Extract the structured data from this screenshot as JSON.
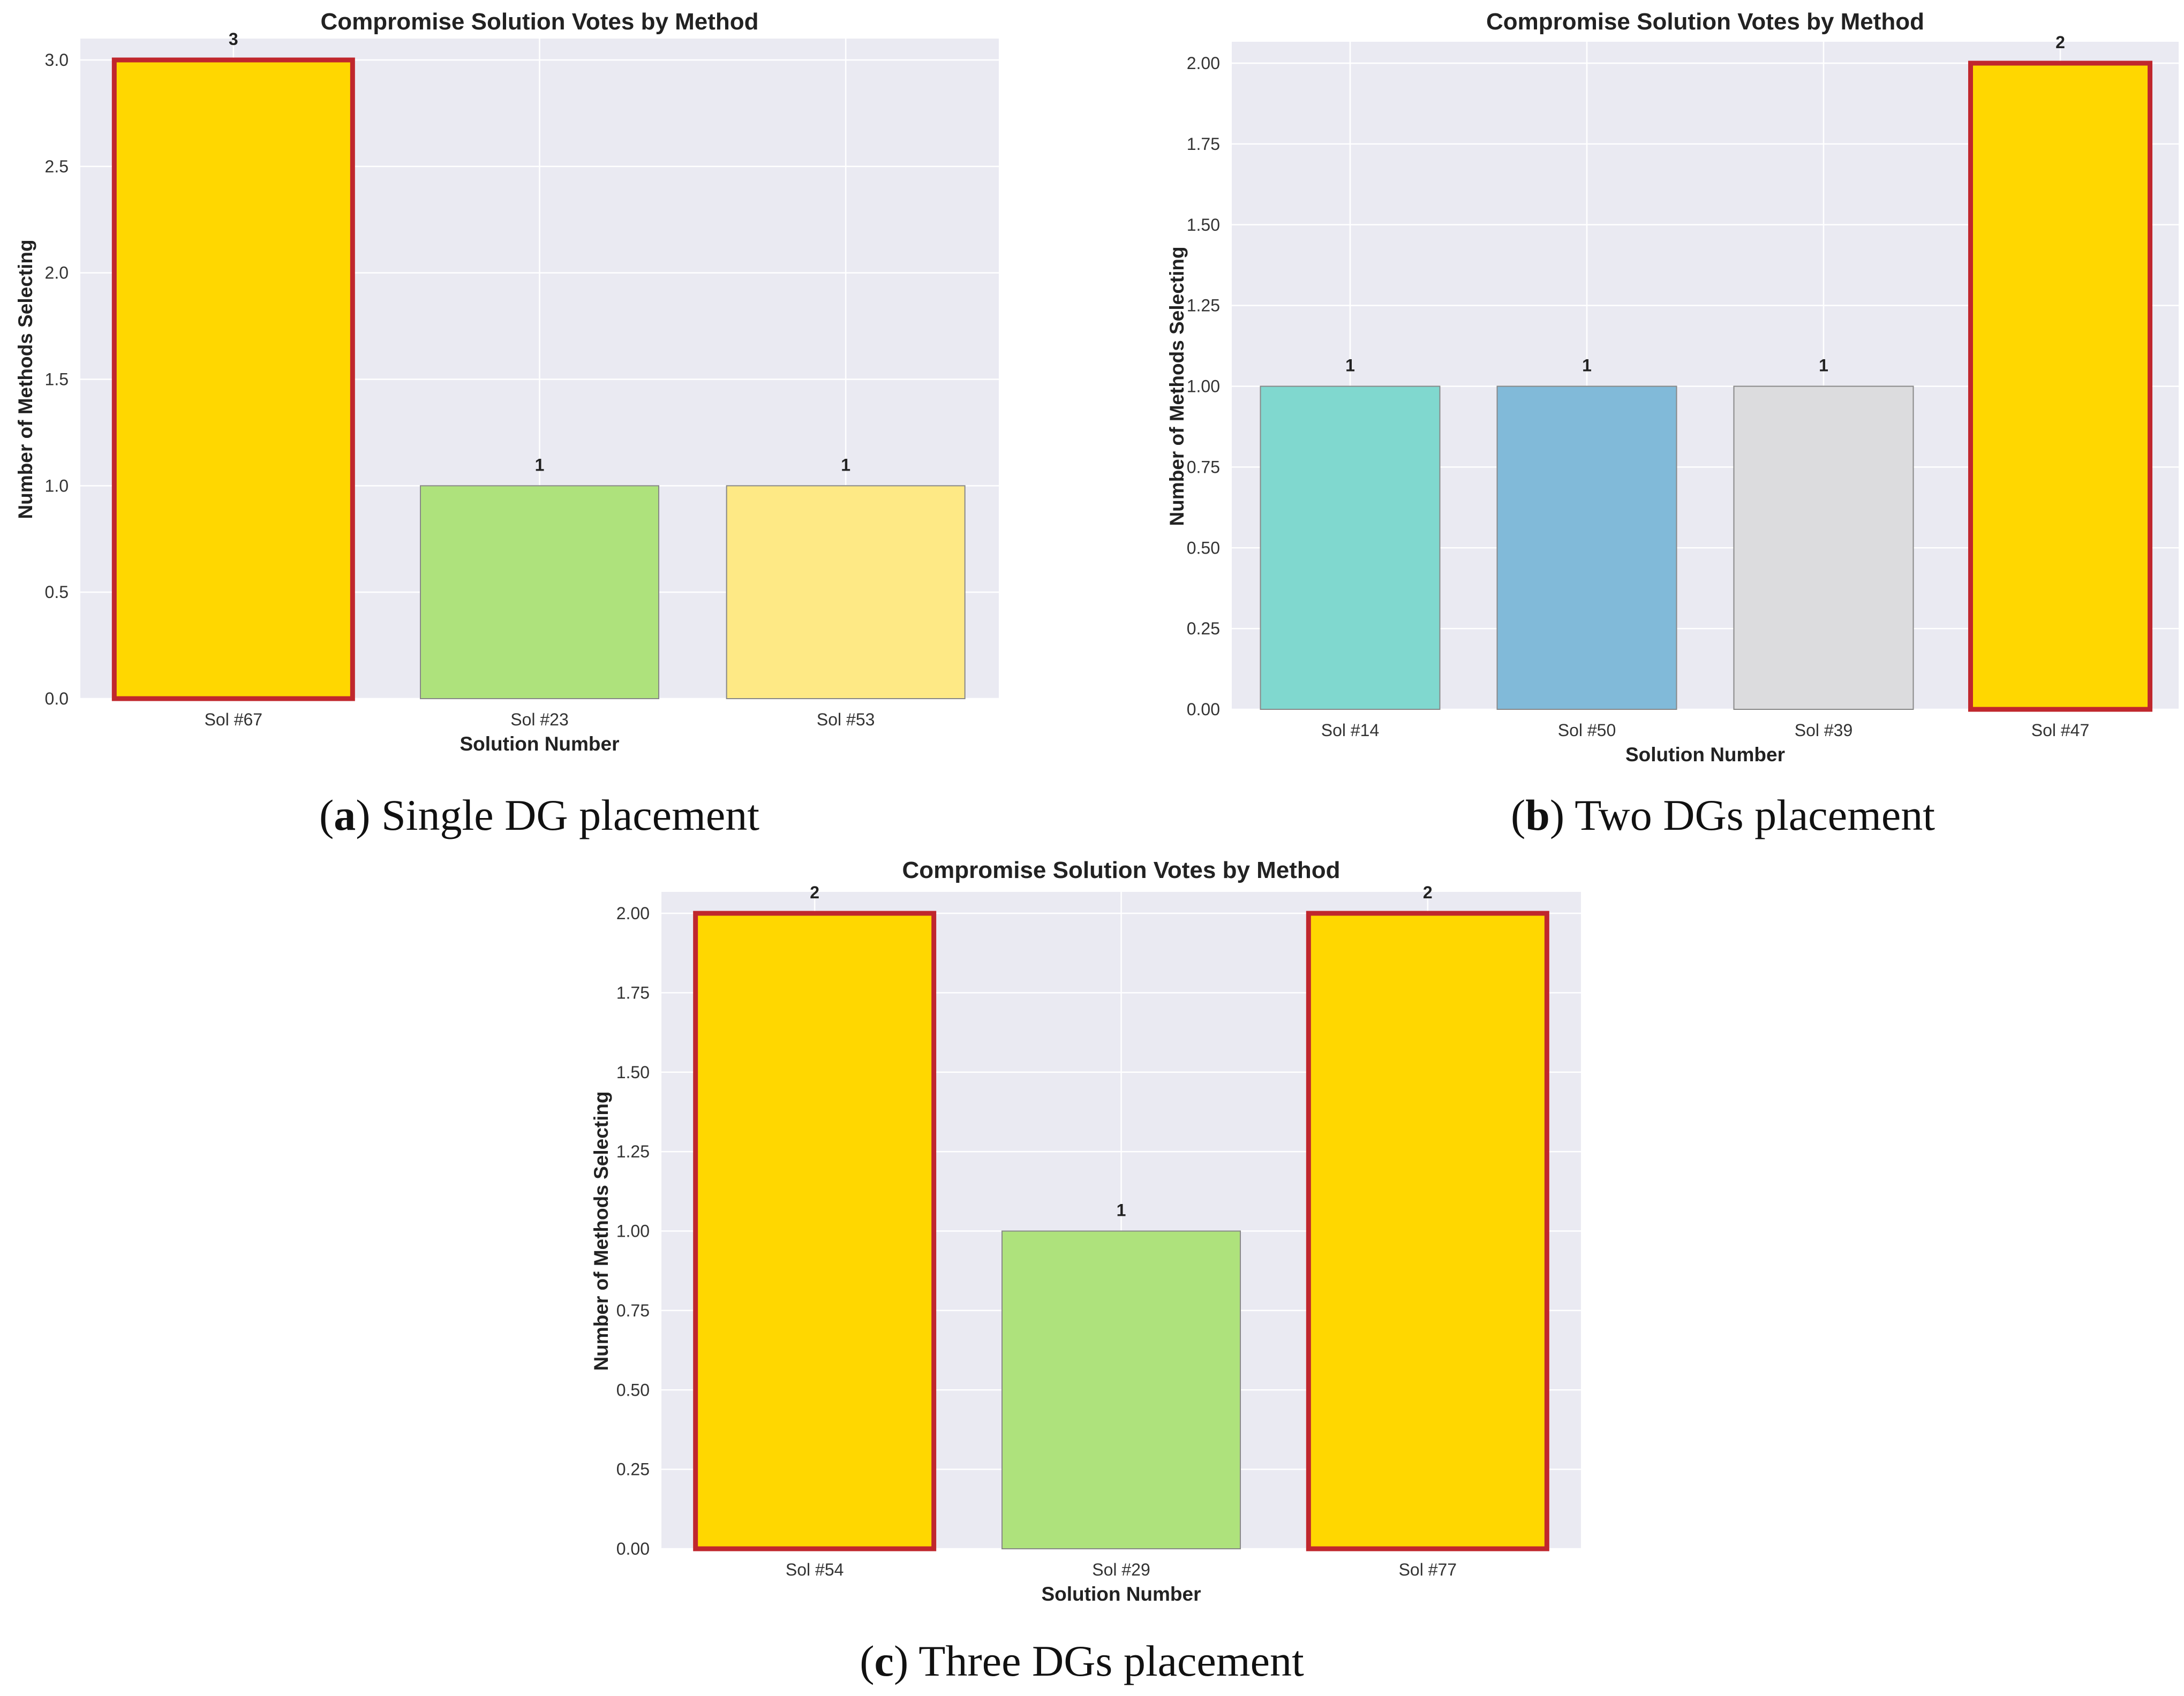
{
  "chart_data": [
    {
      "type": "bar",
      "panel": "a",
      "title": "Compromise Solution Votes by Method",
      "xlabel": "Solution Number",
      "ylabel": "Number of Methods Selecting",
      "categories": [
        "Sol #67",
        "Sol #23",
        "Sol #53"
      ],
      "values": [
        3,
        1,
        1
      ],
      "value_labels": [
        "3",
        "1",
        "1"
      ],
      "bar_colors": [
        "#ffd700",
        "#aee27c",
        "#fee985"
      ],
      "highlighted": [
        true,
        false,
        false
      ],
      "ylim": [
        0,
        3.0
      ],
      "yticks": [
        "0.0",
        "0.5",
        "1.0",
        "1.5",
        "2.0",
        "2.5",
        "3.0"
      ],
      "caption_letter": "a",
      "caption_text": " Single DG placement"
    },
    {
      "type": "bar",
      "panel": "b",
      "title": "Compromise Solution Votes by Method",
      "xlabel": "Solution Number",
      "ylabel": "Number of Methods Selecting",
      "categories": [
        "Sol #14",
        "Sol #50",
        "Sol #39",
        "Sol #47"
      ],
      "values": [
        1,
        1,
        1,
        2
      ],
      "value_labels": [
        "1",
        "1",
        "1",
        "2"
      ],
      "bar_colors": [
        "#80d8cf",
        "#81bad9",
        "#dcdcde",
        "#ffd700"
      ],
      "highlighted": [
        false,
        false,
        false,
        true
      ],
      "ylim": [
        0,
        2.0
      ],
      "yticks": [
        "0.00",
        "0.25",
        "0.50",
        "0.75",
        "1.00",
        "1.25",
        "1.50",
        "1.75",
        "2.00"
      ],
      "caption_letter": "b",
      "caption_text": " Two DGs placement"
    },
    {
      "type": "bar",
      "panel": "c",
      "title": "Compromise Solution Votes by Method",
      "xlabel": "Solution Number",
      "ylabel": "Number of Methods Selecting",
      "categories": [
        "Sol #54",
        "Sol #29",
        "Sol #77"
      ],
      "values": [
        2,
        1,
        2
      ],
      "value_labels": [
        "2",
        "1",
        "2"
      ],
      "bar_colors": [
        "#ffd700",
        "#aee27c",
        "#ffd700"
      ],
      "highlighted": [
        true,
        false,
        true
      ],
      "ylim": [
        0,
        2.0
      ],
      "yticks": [
        "0.00",
        "0.25",
        "0.50",
        "0.75",
        "1.00",
        "1.25",
        "1.50",
        "1.75",
        "2.00"
      ],
      "caption_letter": "c",
      "caption_text": " Three DGs placement"
    }
  ],
  "colors": {
    "plot_background": "#eaeaf2",
    "highlight_edge": "#c0272d",
    "normal_edge": "#888888"
  }
}
